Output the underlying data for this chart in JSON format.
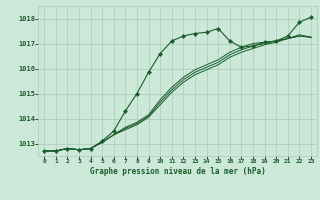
{
  "title": "Graphe pression niveau de la mer (hPa)",
  "bg_color": "#cce8d8",
  "grid_color": "#aacab8",
  "line_color": "#1a5c2a",
  "xlim": [
    -0.5,
    23.5
  ],
  "ylim": [
    1012.5,
    1018.5
  ],
  "yticks": [
    1013,
    1014,
    1015,
    1016,
    1017,
    1018
  ],
  "xticks": [
    0,
    1,
    2,
    3,
    4,
    5,
    6,
    7,
    8,
    9,
    10,
    11,
    12,
    13,
    14,
    15,
    16,
    17,
    18,
    19,
    20,
    21,
    22,
    23
  ],
  "line1_x": [
    0,
    1,
    2,
    3,
    4,
    5,
    6,
    7,
    8,
    9,
    10,
    11,
    12,
    13,
    14,
    15,
    16,
    17,
    18,
    19,
    20,
    21,
    22,
    23
  ],
  "line1_y": [
    1012.7,
    1012.7,
    1012.8,
    1012.75,
    1012.8,
    1013.1,
    1013.5,
    1014.3,
    1015.0,
    1015.85,
    1016.6,
    1017.1,
    1017.3,
    1017.4,
    1017.45,
    1017.6,
    1017.1,
    1016.85,
    1016.9,
    1017.05,
    1017.1,
    1017.3,
    1017.85,
    1018.05
  ],
  "line2_x": [
    0,
    1,
    2,
    3,
    4,
    5,
    6,
    7,
    8,
    9,
    10,
    11,
    12,
    13,
    14,
    15,
    16,
    17,
    18,
    19,
    20,
    21,
    22,
    23
  ],
  "line2_y": [
    1012.7,
    1012.7,
    1012.8,
    1012.75,
    1012.8,
    1013.05,
    1013.35,
    1013.55,
    1013.75,
    1014.05,
    1014.55,
    1015.05,
    1015.45,
    1015.75,
    1015.95,
    1016.15,
    1016.45,
    1016.65,
    1016.8,
    1016.95,
    1017.05,
    1017.2,
    1017.35,
    1017.25
  ],
  "line3_x": [
    0,
    1,
    2,
    3,
    4,
    5,
    6,
    7,
    8,
    9,
    10,
    11,
    12,
    13,
    14,
    15,
    16,
    17,
    18,
    19,
    20,
    21,
    22,
    23
  ],
  "line3_y": [
    1012.7,
    1012.7,
    1012.8,
    1012.75,
    1012.8,
    1013.05,
    1013.35,
    1013.6,
    1013.8,
    1014.1,
    1014.65,
    1015.15,
    1015.55,
    1015.85,
    1016.05,
    1016.25,
    1016.55,
    1016.75,
    1016.9,
    1017.0,
    1017.1,
    1017.2,
    1017.3,
    1017.25
  ],
  "line4_x": [
    0,
    1,
    2,
    3,
    4,
    5,
    6,
    7,
    8,
    9,
    10,
    11,
    12,
    13,
    14,
    15,
    16,
    17,
    18,
    19,
    20,
    21,
    22,
    23
  ],
  "line4_y": [
    1012.7,
    1012.7,
    1012.8,
    1012.75,
    1012.8,
    1013.05,
    1013.35,
    1013.65,
    1013.85,
    1014.15,
    1014.75,
    1015.25,
    1015.65,
    1015.95,
    1016.15,
    1016.35,
    1016.65,
    1016.85,
    1017.0,
    1017.05,
    1017.1,
    1017.2,
    1017.3,
    1017.25
  ]
}
